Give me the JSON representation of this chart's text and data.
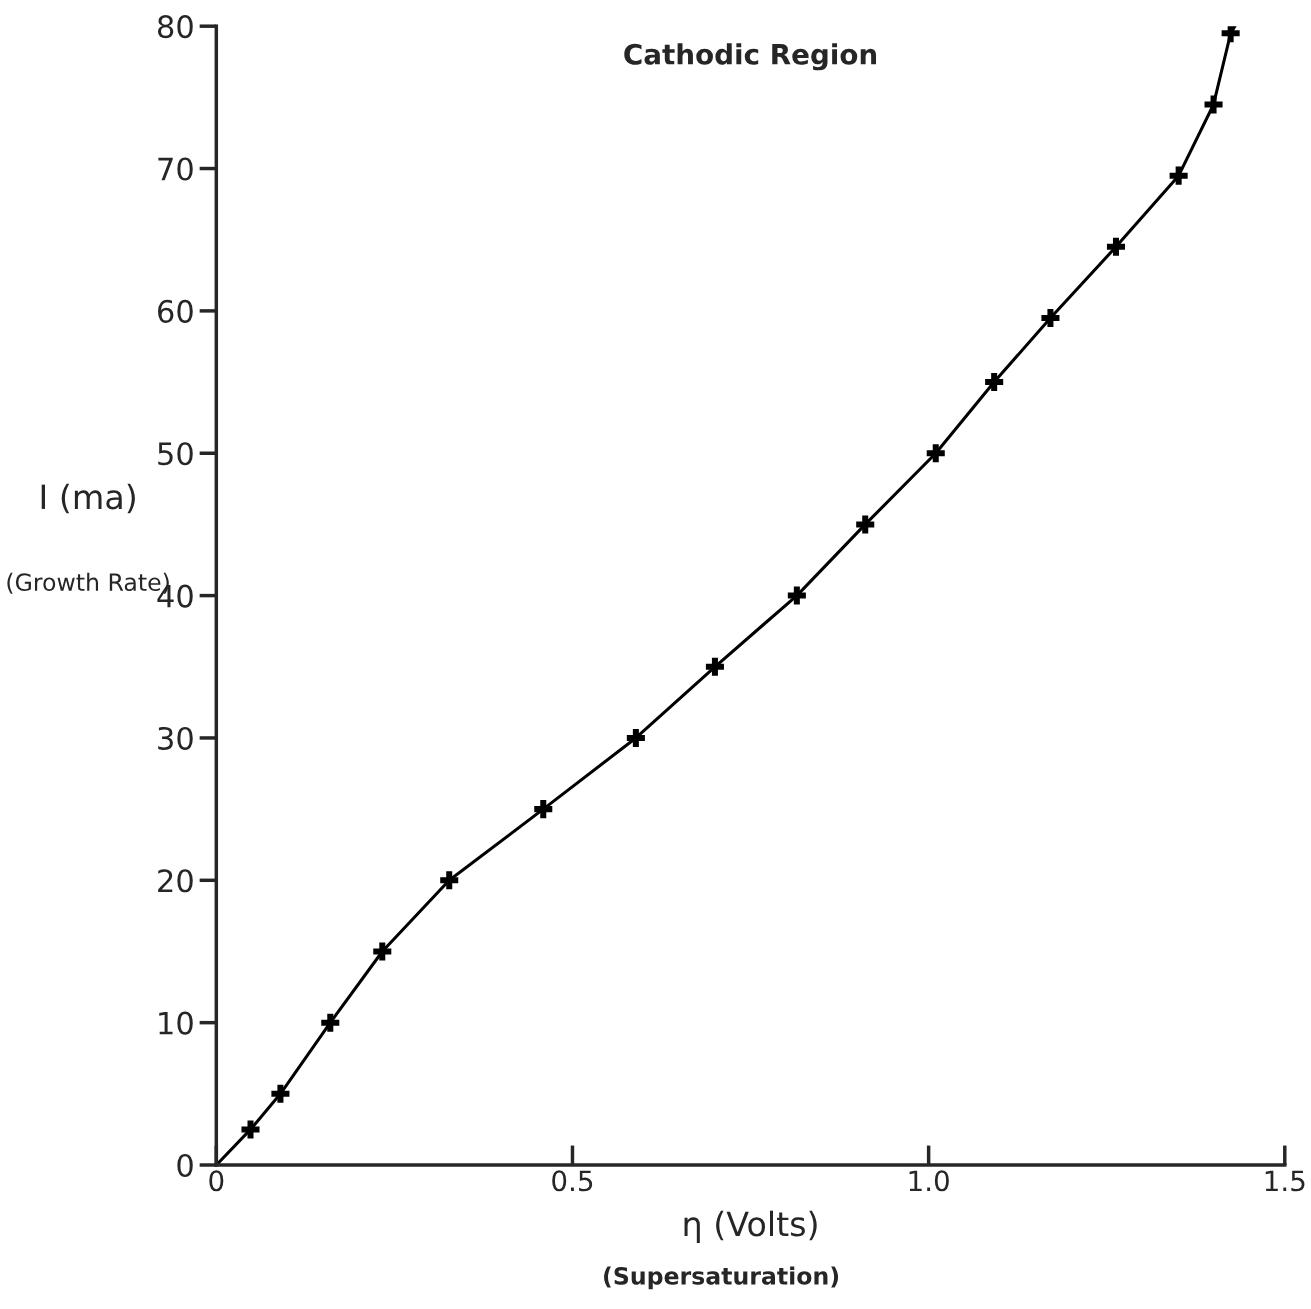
{
  "chart_data": {
    "type": "line",
    "title": "Cathodic Region",
    "xlabel": "η (Volts)",
    "ylabel": "I (ma)",
    "annotations": [
      "(Growth Rate)",
      "(Supersaturation)"
    ],
    "series": [
      {
        "color": "#000000",
        "marker": "none",
        "x": [
          0,
          0.048,
          0.09,
          0.16,
          0.233,
          0.327,
          0.459,
          0.589,
          0.7,
          0.815,
          0.911,
          1.01,
          1.092,
          1.171,
          1.263,
          1.351,
          1.4,
          1.424,
          1.43
        ],
        "values": [
          0,
          2.5,
          5,
          10,
          15,
          20,
          25,
          30,
          35,
          40,
          45,
          50,
          55,
          59.5,
          64.5,
          69.5,
          74.5,
          79.5,
          80
        ]
      },
      {
        "type": "scatter",
        "color": "#000000",
        "marker": "cross",
        "x": [
          0.048,
          0.09,
          0.16,
          0.233,
          0.327,
          0.459,
          0.589,
          0.7,
          0.815,
          0.911,
          1.01,
          1.092,
          1.171,
          1.263,
          1.351,
          1.4,
          1.424
        ],
        "values": [
          2.5,
          5,
          10,
          15,
          20,
          25,
          30,
          35,
          40,
          45,
          50,
          55,
          59.5,
          64.5,
          69.5,
          74.5,
          79.5
        ]
      }
    ],
    "xlim": [
      0,
      1.5
    ],
    "ylim": [
      0,
      80
    ],
    "xticks": [
      0,
      0.5,
      {
        "value": 1,
        "label": "1.0"
      },
      1.5
    ],
    "yticks": [
      0,
      10,
      20,
      30,
      40,
      50,
      60,
      70,
      80
    ],
    "grid": false,
    "legend": false
  }
}
